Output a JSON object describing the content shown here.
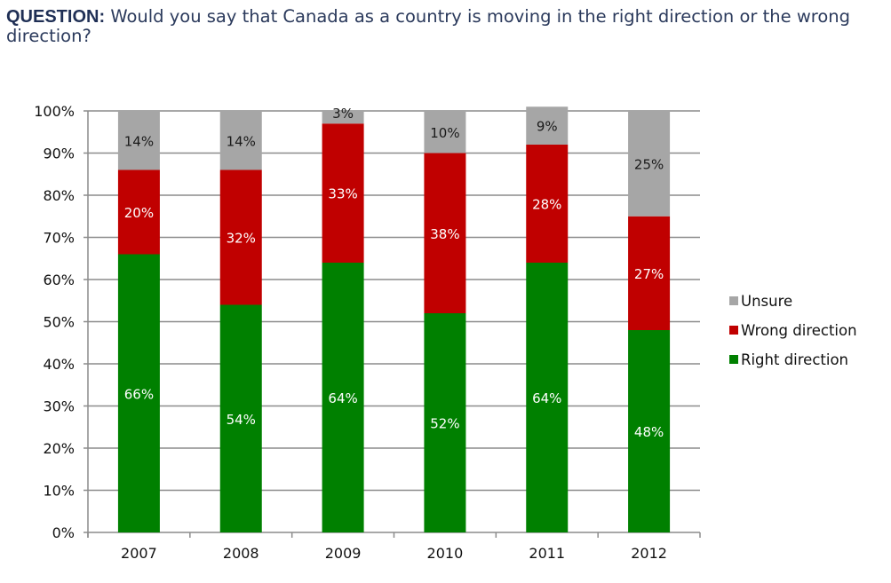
{
  "title": {
    "prefix": "QUESTION:",
    "text": " Would you say that Canada as a country is moving in the right direction or the wrong direction?"
  },
  "chart_data": {
    "type": "bar",
    "stacked": true,
    "categories": [
      "2007",
      "2008",
      "2009",
      "2010",
      "2011",
      "2012"
    ],
    "series": [
      {
        "name": "Right direction",
        "color": "#008000",
        "label_color": "#ffffff",
        "values": [
          66,
          54,
          64,
          52,
          64,
          48
        ]
      },
      {
        "name": "Wrong direction",
        "color": "#c00000",
        "label_color": "#ffffff",
        "values": [
          20,
          32,
          33,
          38,
          28,
          27
        ]
      },
      {
        "name": "Unsure",
        "color": "#a6a6a6",
        "label_color": "#1a1a1a",
        "values": [
          14,
          14,
          3,
          10,
          9,
          25
        ]
      }
    ],
    "ylim": [
      0,
      100
    ],
    "yticks": [
      "0%",
      "10%",
      "20%",
      "30%",
      "40%",
      "50%",
      "60%",
      "70%",
      "80%",
      "90%",
      "100%"
    ],
    "grid": true,
    "legend": {
      "placement": "right",
      "order": [
        "Unsure",
        "Wrong direction",
        "Right direction"
      ]
    }
  }
}
